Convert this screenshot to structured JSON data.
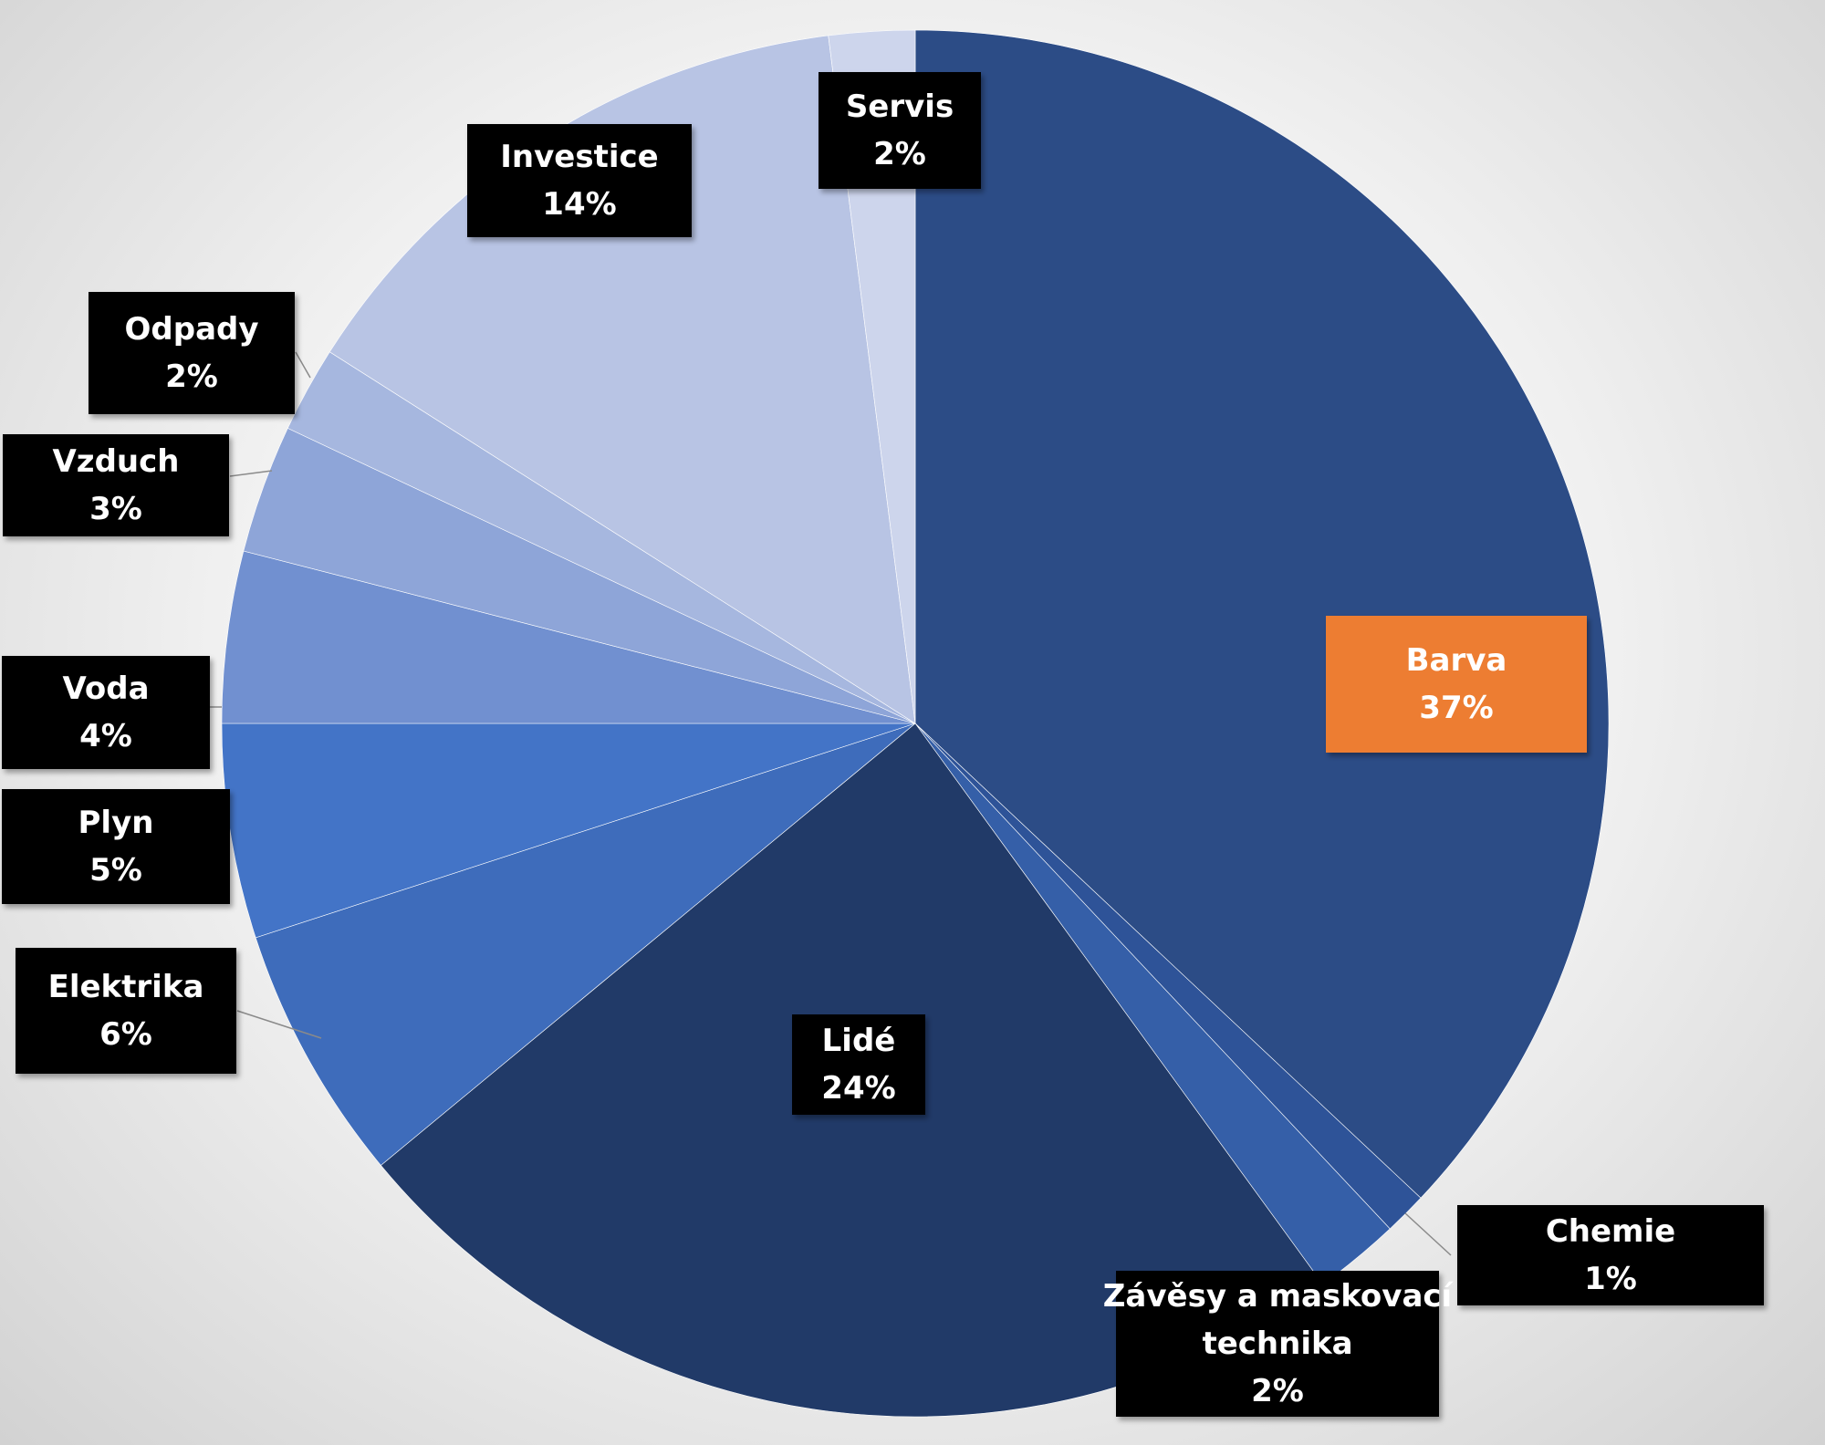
{
  "chart_data": {
    "type": "pie",
    "title": "",
    "start": "top, clockwise",
    "slices": [
      {
        "label": "Barva",
        "value": 37,
        "pct_label": "37%",
        "color": "#2c4c86",
        "label_bg": "#ed7d31"
      },
      {
        "label": "Chemie",
        "value": 1,
        "pct_label": "1%",
        "color": "#2e5398",
        "label_bg": "#000000"
      },
      {
        "label": "Závěsy a maskovací technika",
        "value": 2,
        "pct_label": "2%",
        "color": "#355fa8",
        "label_bg": "#000000"
      },
      {
        "label": "Lidé",
        "value": 24,
        "pct_label": "24%",
        "color": "#213a68",
        "label_bg": "#000000"
      },
      {
        "label": "Elektrika",
        "value": 6,
        "pct_label": "6%",
        "color": "#3e6cbb",
        "label_bg": "#000000"
      },
      {
        "label": "Plyn",
        "value": 5,
        "pct_label": "5%",
        "color": "#4374c7",
        "label_bg": "#000000"
      },
      {
        "label": "Voda",
        "value": 4,
        "pct_label": "4%",
        "color": "#7190d0",
        "label_bg": "#000000"
      },
      {
        "label": "Vzduch",
        "value": 3,
        "pct_label": "3%",
        "color": "#8ea5d8",
        "label_bg": "#000000"
      },
      {
        "label": "Odpady",
        "value": 2,
        "pct_label": "2%",
        "color": "#a6b7df",
        "label_bg": "#000000"
      },
      {
        "label": "Investice",
        "value": 14,
        "pct_label": "14%",
        "color": "#b8c4e4",
        "label_bg": "#000000"
      },
      {
        "label": "Servis",
        "value": 2,
        "pct_label": "2%",
        "color": "#cdd5ec",
        "label_bg": "#000000"
      }
    ]
  }
}
